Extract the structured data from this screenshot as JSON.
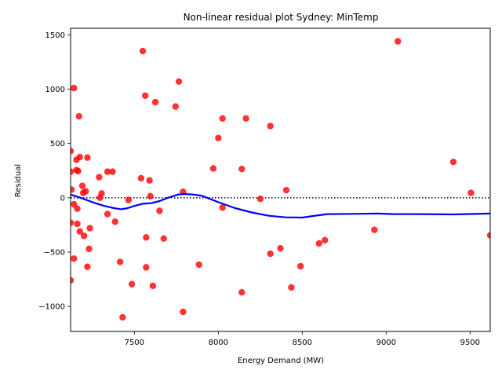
{
  "chart_data": {
    "type": "scatter",
    "title": "Non-linear residual plot Sydney: MinTemp",
    "xlabel": "Energy Demand (MW)",
    "ylabel": "Residual",
    "xlim": [
      7120,
      9620
    ],
    "ylim": [
      -1230,
      1560
    ],
    "xticks": [
      7500,
      8000,
      8500,
      9000,
      9500
    ],
    "xtick_labels": [
      "7500",
      "8000",
      "8500",
      "9000",
      "9500"
    ],
    "yticks": [
      -1000,
      -500,
      0,
      500,
      1000,
      1500
    ],
    "ytick_labels": [
      "−1000",
      "−500",
      "0",
      "500",
      "1000",
      "1500"
    ],
    "reference_line": {
      "y": 0,
      "style": "dotted",
      "color": "#000000"
    },
    "grid": false,
    "series": [
      {
        "kind": "scatter",
        "color": "#ff0000",
        "points": [
          [
            7120,
            430
          ],
          [
            7120,
            240
          ],
          [
            7125,
            75
          ],
          [
            7120,
            -230
          ],
          [
            7120,
            -760
          ],
          [
            7140,
            1010
          ],
          [
            7140,
            -60
          ],
          [
            7140,
            -560
          ],
          [
            7155,
            255
          ],
          [
            7155,
            350
          ],
          [
            7160,
            -100
          ],
          [
            7160,
            -240
          ],
          [
            7165,
            245
          ],
          [
            7170,
            750
          ],
          [
            7175,
            375
          ],
          [
            7175,
            -310
          ],
          [
            7190,
            110
          ],
          [
            7195,
            45
          ],
          [
            7200,
            -350
          ],
          [
            7210,
            60
          ],
          [
            7220,
            370
          ],
          [
            7220,
            -635
          ],
          [
            7230,
            -470
          ],
          [
            7235,
            -280
          ],
          [
            7290,
            190
          ],
          [
            7295,
            0
          ],
          [
            7305,
            40
          ],
          [
            7340,
            240
          ],
          [
            7340,
            -150
          ],
          [
            7370,
            240
          ],
          [
            7385,
            -220
          ],
          [
            7415,
            -590
          ],
          [
            7430,
            -1100
          ],
          [
            7465,
            -20
          ],
          [
            7485,
            -795
          ],
          [
            7540,
            180
          ],
          [
            7550,
            1350
          ],
          [
            7565,
            940
          ],
          [
            7570,
            -365
          ],
          [
            7570,
            -640
          ],
          [
            7590,
            160
          ],
          [
            7595,
            15
          ],
          [
            7610,
            -810
          ],
          [
            7625,
            880
          ],
          [
            7650,
            -120
          ],
          [
            7675,
            -375
          ],
          [
            7745,
            840
          ],
          [
            7765,
            1070
          ],
          [
            7790,
            55
          ],
          [
            7790,
            -1050
          ],
          [
            7885,
            -615
          ],
          [
            7970,
            270
          ],
          [
            8000,
            550
          ],
          [
            8025,
            730
          ],
          [
            8025,
            -90
          ],
          [
            8140,
            265
          ],
          [
            8140,
            -870
          ],
          [
            8165,
            730
          ],
          [
            8250,
            -10
          ],
          [
            8310,
            660
          ],
          [
            8310,
            -515
          ],
          [
            8370,
            -465
          ],
          [
            8405,
            70
          ],
          [
            8435,
            -825
          ],
          [
            8490,
            -630
          ],
          [
            8600,
            -420
          ],
          [
            8635,
            -390
          ],
          [
            8930,
            -295
          ],
          [
            9070,
            1440
          ],
          [
            9400,
            330
          ],
          [
            9505,
            45
          ],
          [
            9620,
            -345
          ]
        ]
      },
      {
        "kind": "line",
        "color": "#0000ff",
        "points": [
          [
            7120,
            30
          ],
          [
            7180,
            0
          ],
          [
            7250,
            -40
          ],
          [
            7320,
            -75
          ],
          [
            7380,
            -95
          ],
          [
            7420,
            -105
          ],
          [
            7460,
            -95
          ],
          [
            7500,
            -75
          ],
          [
            7550,
            -55
          ],
          [
            7600,
            -50
          ],
          [
            7650,
            -30
          ],
          [
            7700,
            0
          ],
          [
            7760,
            30
          ],
          [
            7800,
            35
          ],
          [
            7850,
            30
          ],
          [
            7900,
            20
          ],
          [
            7950,
            -10
          ],
          [
            8000,
            -40
          ],
          [
            8100,
            -95
          ],
          [
            8200,
            -135
          ],
          [
            8300,
            -165
          ],
          [
            8400,
            -180
          ],
          [
            8500,
            -182
          ],
          [
            8600,
            -160
          ],
          [
            8650,
            -150
          ],
          [
            8800,
            -148
          ],
          [
            8950,
            -145
          ],
          [
            9050,
            -150
          ],
          [
            9200,
            -150
          ],
          [
            9400,
            -153
          ],
          [
            9620,
            -145
          ]
        ]
      }
    ]
  }
}
